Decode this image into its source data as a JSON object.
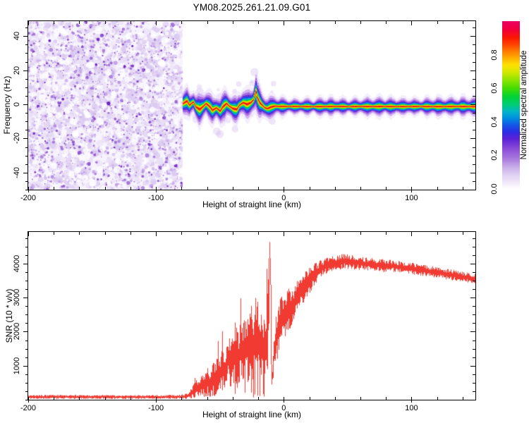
{
  "title": "YM08.2025.261.21.09.G01",
  "chart_data": [
    {
      "type": "heatmap",
      "panel": "spectrogram",
      "xlabel": "Height of straight line (km)",
      "ylabel": "Frequency (Hz)",
      "xlim": [
        -200,
        150
      ],
      "ylim": [
        -50,
        48.8
      ],
      "xticks": [
        -200,
        -100,
        0,
        100
      ],
      "xtick_minor_step": 20,
      "yticks": [
        -40,
        -20,
        0,
        20,
        40
      ],
      "ytick_minor_step": 5,
      "grid": false,
      "noise_region": {
        "x_range": [
          -200,
          -79
        ],
        "description": "random purple speckle noise filling all frequencies",
        "base_color": "#f8f4fd",
        "speckle_colors": [
          "#e9def6",
          "#d9c7f0",
          "#c3a4e8",
          "#a376da",
          "#8348cb",
          "#6a23bd"
        ]
      },
      "spectral_line": {
        "description": "echo trace [x_km, center_freq_hz, halo_halfwidth_hz]; wavy from -79 to 0 km with +8 Hz spike near -22 km, then a narrow straight band near -1 Hz out to 150 km",
        "points": [
          [
            -79,
            0.5,
            7
          ],
          [
            -76,
            2,
            7
          ],
          [
            -74,
            -0.5,
            6.5
          ],
          [
            -71,
            1.5,
            7
          ],
          [
            -69,
            -1.5,
            7
          ],
          [
            -66,
            -3,
            7.5
          ],
          [
            -63,
            -1,
            7
          ],
          [
            -61,
            0.5,
            7
          ],
          [
            -58,
            -1.5,
            7
          ],
          [
            -56,
            -3.5,
            7.5
          ],
          [
            -53,
            -2,
            7
          ],
          [
            -50,
            -4,
            7.5
          ],
          [
            -48,
            -1.5,
            7
          ],
          [
            -45,
            0.5,
            7
          ],
          [
            -43,
            -1,
            7
          ],
          [
            -40,
            -2.5,
            7
          ],
          [
            -37,
            -3,
            7
          ],
          [
            -35,
            -0.5,
            7
          ],
          [
            -32,
            1,
            7
          ],
          [
            -29,
            0,
            7
          ],
          [
            -26,
            1,
            7
          ],
          [
            -24,
            2.5,
            8
          ],
          [
            -23,
            5,
            9
          ],
          [
            -22,
            8,
            10
          ],
          [
            -21,
            4,
            8
          ],
          [
            -19,
            1,
            7
          ],
          [
            -17,
            -0.5,
            6
          ],
          [
            -15,
            -2,
            6
          ],
          [
            -13,
            -2.5,
            6
          ],
          [
            -10,
            -1.5,
            5.5
          ],
          [
            -7,
            -1,
            5
          ],
          [
            -4,
            -1.2,
            5
          ],
          [
            0,
            -1.2,
            4.5
          ],
          [
            10,
            -1.2,
            4
          ],
          [
            20,
            -1.3,
            4
          ],
          [
            30,
            -1.3,
            4.5
          ],
          [
            40,
            -1.2,
            4.5
          ],
          [
            50,
            -1.3,
            4
          ],
          [
            60,
            -1.2,
            4
          ],
          [
            70,
            -1.3,
            5
          ],
          [
            78,
            -1.2,
            5
          ],
          [
            85,
            -1.3,
            4.5
          ],
          [
            95,
            -1.3,
            4
          ],
          [
            105,
            -1.2,
            4
          ],
          [
            115,
            -1.3,
            4.5
          ],
          [
            125,
            -1.3,
            5
          ],
          [
            135,
            -1.2,
            5
          ],
          [
            145,
            -1.3,
            5
          ],
          [
            150,
            -1.3,
            5
          ]
        ],
        "layers": [
          [
            1.35,
            "#ecdff8",
            0.45
          ],
          [
            1.0,
            "#cfa9ef",
            0.85
          ],
          [
            0.8,
            "#a76ae2",
            1
          ],
          [
            0.63,
            "#6030d8",
            1
          ],
          [
            0.5,
            "#2a44e6",
            1
          ],
          [
            0.4,
            "#00a8e6",
            1
          ],
          [
            0.3,
            "#00d148",
            1
          ],
          [
            0.22,
            "#9fe300",
            1
          ],
          [
            0.16,
            "#ffe300",
            1
          ],
          [
            0.105,
            "#ff7a00",
            1
          ],
          [
            0.062,
            "#f22000",
            1
          ]
        ],
        "core_color": "#e2004e"
      },
      "colorbar": {
        "label": "Normalized spectral amplitude",
        "ticks": [
          0.0,
          0.2,
          0.4,
          0.6,
          0.8
        ],
        "range": [
          0,
          1
        ],
        "stops": [
          [
            0,
            "#ffffff"
          ],
          [
            0.03,
            "#f3ecfa"
          ],
          [
            0.08,
            "#e2d3f4"
          ],
          [
            0.13,
            "#c9ade9"
          ],
          [
            0.18,
            "#a87ade"
          ],
          [
            0.24,
            "#8a4bd8"
          ],
          [
            0.3,
            "#5b21d8"
          ],
          [
            0.34,
            "#2d2de4"
          ],
          [
            0.38,
            "#1556e8"
          ],
          [
            0.42,
            "#008ce0"
          ],
          [
            0.46,
            "#00b4c8"
          ],
          [
            0.5,
            "#00cc7a"
          ],
          [
            0.55,
            "#00d335"
          ],
          [
            0.6,
            "#45dc00"
          ],
          [
            0.65,
            "#8ee400"
          ],
          [
            0.7,
            "#d8e800"
          ],
          [
            0.74,
            "#ffe000"
          ],
          [
            0.78,
            "#ffae00"
          ],
          [
            0.82,
            "#ff7c00"
          ],
          [
            0.86,
            "#ff4400"
          ],
          [
            0.9,
            "#fb1800"
          ],
          [
            0.95,
            "#f2003c"
          ],
          [
            1.0,
            "#ec0064"
          ]
        ]
      }
    },
    {
      "type": "line",
      "panel": "snr-profile",
      "xlabel": "Height of straight line (km)",
      "ylabel": "SNR (10 * v/v)",
      "xlim": [
        -200,
        150
      ],
      "ylim": [
        0,
        4930
      ],
      "xticks": [
        -200,
        -100,
        0,
        100
      ],
      "xtick_minor_step": 20,
      "yticks": [
        1000,
        2000,
        3000,
        4000
      ],
      "ytick_minor_step": 250,
      "grid": false,
      "series": [
        {
          "name": "SNR",
          "color": "#f13a31",
          "description": "noisy trace [x_km, mean, jitter_amp]; flat noise floor ~80 until -75 km, large oscillating spikes rising through -70..-15 km, clipped spike to panel top near -11 km, dip to ~700, then plateau ~4000 slowly declining to ~3550 at 150 km",
          "envelope_points": [
            [
              -200,
              80,
              60
            ],
            [
              -190,
              80,
              60
            ],
            [
              -180,
              82,
              62
            ],
            [
              -170,
              85,
              65
            ],
            [
              -160,
              80,
              60
            ],
            [
              -150,
              82,
              60
            ],
            [
              -140,
              85,
              62
            ],
            [
              -130,
              80,
              60
            ],
            [
              -120,
              82,
              60
            ],
            [
              -110,
              85,
              62
            ],
            [
              -100,
              80,
              60
            ],
            [
              -90,
              82,
              60
            ],
            [
              -82,
              85,
              62
            ],
            [
              -76,
              100,
              85
            ],
            [
              -73,
              170,
              140
            ],
            [
              -70,
              280,
              230
            ],
            [
              -68,
              330,
              280
            ],
            [
              -66,
              280,
              230
            ],
            [
              -64,
              450,
              380
            ],
            [
              -62,
              380,
              320
            ],
            [
              -60,
              560,
              460
            ],
            [
              -58,
              480,
              400
            ],
            [
              -56,
              680,
              540
            ],
            [
              -54,
              540,
              450
            ],
            [
              -52,
              820,
              640
            ],
            [
              -50,
              720,
              570
            ],
            [
              -48,
              980,
              720
            ],
            [
              -46,
              820,
              640
            ],
            [
              -44,
              1280,
              930
            ],
            [
              -42,
              950,
              730
            ],
            [
              -40,
              1150,
              870
            ],
            [
              -38,
              1350,
              980
            ],
            [
              -36,
              1180,
              880
            ],
            [
              -34,
              1480,
              1020
            ],
            [
              -32,
              1250,
              930
            ],
            [
              -30,
              1650,
              1080
            ],
            [
              -28,
              1450,
              980
            ],
            [
              -26,
              1850,
              1120
            ],
            [
              -24,
              1550,
              1020
            ],
            [
              -22,
              2050,
              1120
            ],
            [
              -20,
              1850,
              1020
            ],
            [
              -18,
              1650,
              930
            ],
            [
              -16,
              1450,
              860
            ],
            [
              -14,
              1750,
              920
            ],
            [
              -12,
              2700,
              1900
            ],
            [
              -11,
              4900,
              120
            ],
            [
              -10,
              950,
              520
            ],
            [
              -9,
              720,
              320
            ],
            [
              -8,
              1350,
              620
            ],
            [
              -6,
              1850,
              820
            ],
            [
              -4,
              2150,
              820
            ],
            [
              -2,
              2350,
              760
            ],
            [
              0,
              2450,
              710
            ],
            [
              3,
              2580,
              660
            ],
            [
              6,
              2750,
              600
            ],
            [
              9,
              2900,
              540
            ],
            [
              12,
              3100,
              480
            ],
            [
              15,
              3260,
              440
            ],
            [
              18,
              3420,
              410
            ],
            [
              21,
              3540,
              390
            ],
            [
              24,
              3680,
              340
            ],
            [
              27,
              3780,
              300
            ],
            [
              30,
              3870,
              280
            ],
            [
              35,
              3960,
              250
            ],
            [
              40,
              4010,
              235
            ],
            [
              45,
              4060,
              225
            ],
            [
              50,
              4060,
              215
            ],
            [
              55,
              4030,
              205
            ],
            [
              60,
              4010,
              200
            ],
            [
              65,
              3990,
              195
            ],
            [
              70,
              3970,
              190
            ],
            [
              75,
              3950,
              188
            ],
            [
              80,
              3940,
              185
            ],
            [
              85,
              3930,
              182
            ],
            [
              90,
              3905,
              178
            ],
            [
              95,
              3880,
              176
            ],
            [
              100,
              3855,
              172
            ],
            [
              105,
              3825,
              170
            ],
            [
              110,
              3795,
              168
            ],
            [
              115,
              3765,
              166
            ],
            [
              120,
              3735,
              163
            ],
            [
              125,
              3705,
              162
            ],
            [
              130,
              3675,
              160
            ],
            [
              135,
              3645,
              158
            ],
            [
              140,
              3610,
              156
            ],
            [
              145,
              3575,
              153
            ],
            [
              150,
              3545,
              150
            ]
          ]
        }
      ]
    }
  ]
}
